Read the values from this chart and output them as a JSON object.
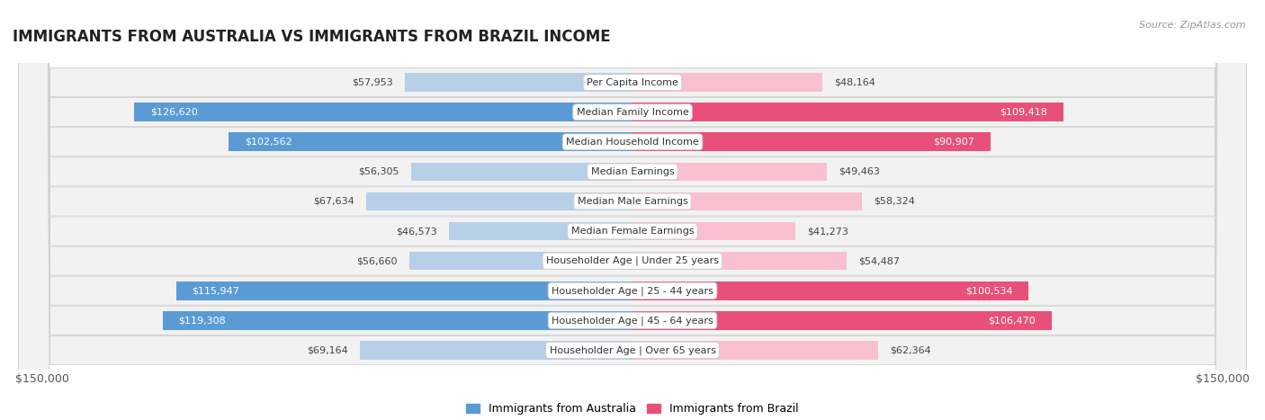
{
  "title": "IMMIGRANTS FROM AUSTRALIA VS IMMIGRANTS FROM BRAZIL INCOME",
  "source": "Source: ZipAtlas.com",
  "categories": [
    "Per Capita Income",
    "Median Family Income",
    "Median Household Income",
    "Median Earnings",
    "Median Male Earnings",
    "Median Female Earnings",
    "Householder Age | Under 25 years",
    "Householder Age | 25 - 44 years",
    "Householder Age | 45 - 64 years",
    "Householder Age | Over 65 years"
  ],
  "australia_values": [
    57953,
    126620,
    102562,
    56305,
    67634,
    46573,
    56660,
    115947,
    119308,
    69164
  ],
  "brazil_values": [
    48164,
    109418,
    90907,
    49463,
    58324,
    41273,
    54487,
    100534,
    106470,
    62364
  ],
  "australia_color_light": "#b8cfe8",
  "australia_color_dark": "#5b9bd5",
  "brazil_color_light": "#f9c0d0",
  "brazil_color_dark": "#e8507a",
  "australia_threshold": 90000,
  "brazil_threshold": 90000,
  "row_bg_color": "#f2f2f2",
  "row_border_color": "#d0d0d0",
  "max_value": 150000,
  "x_label_left": "$150,000",
  "x_label_right": "$150,000",
  "legend_australia": "Immigrants from Australia",
  "legend_brazil": "Immigrants from Brazil",
  "title_fontsize": 12,
  "source_fontsize": 8,
  "bar_height": 0.62,
  "background_color": "#ffffff",
  "label_fontsize": 8,
  "value_inside_threshold": 90000
}
